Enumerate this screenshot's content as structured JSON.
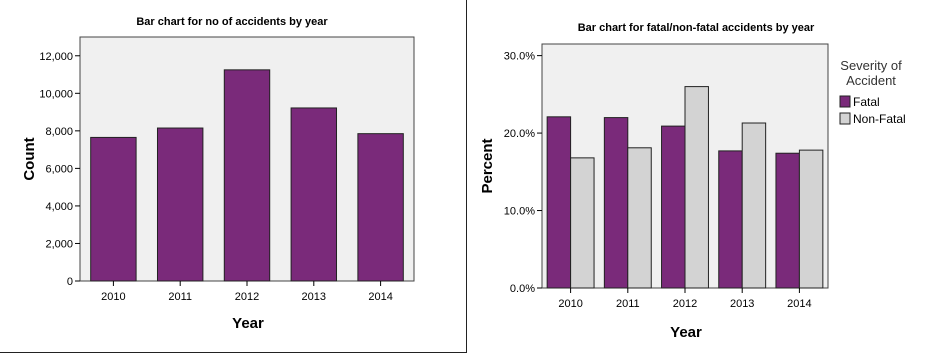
{
  "colors": {
    "fatal": "#7a2a7a",
    "non_fatal": "#d3d3d3",
    "plot_bg": "#f0f0f0",
    "bar_stroke": "#222222"
  },
  "chart_data": [
    {
      "type": "bar",
      "title": "Bar chart for no of accidents by year",
      "xlabel": "Year",
      "ylabel": "Count",
      "categories": [
        "2010",
        "2011",
        "2012",
        "2013",
        "2014"
      ],
      "values": [
        7650,
        8150,
        11250,
        9220,
        7850
      ],
      "ylim": [
        0,
        13000
      ],
      "yticks": [
        "0",
        "2,000",
        "4,000",
        "6,000",
        "8,000",
        "10,000",
        "12,000"
      ],
      "ytick_values": [
        0,
        2000,
        4000,
        6000,
        8000,
        10000,
        12000
      ],
      "grid": false
    },
    {
      "type": "bar",
      "title": "Bar chart for fatal/non-fatal accidents by year",
      "xlabel": "Year",
      "ylabel": "Percent",
      "categories": [
        "2010",
        "2011",
        "2012",
        "2013",
        "2014"
      ],
      "series": [
        {
          "name": "Fatal",
          "values": [
            22.1,
            22.0,
            20.9,
            17.7,
            17.4
          ]
        },
        {
          "name": "Non-Fatal",
          "values": [
            16.8,
            18.1,
            26.0,
            21.3,
            17.8
          ]
        }
      ],
      "ylim": [
        0,
        31.5
      ],
      "yticks": [
        "0.0%",
        "10.0%",
        "20.0%",
        "30.0%"
      ],
      "ytick_values": [
        0,
        10,
        20,
        30
      ],
      "legend_title": [
        "Severity of",
        "Accident"
      ],
      "legend_position": "right",
      "grid": false
    }
  ]
}
